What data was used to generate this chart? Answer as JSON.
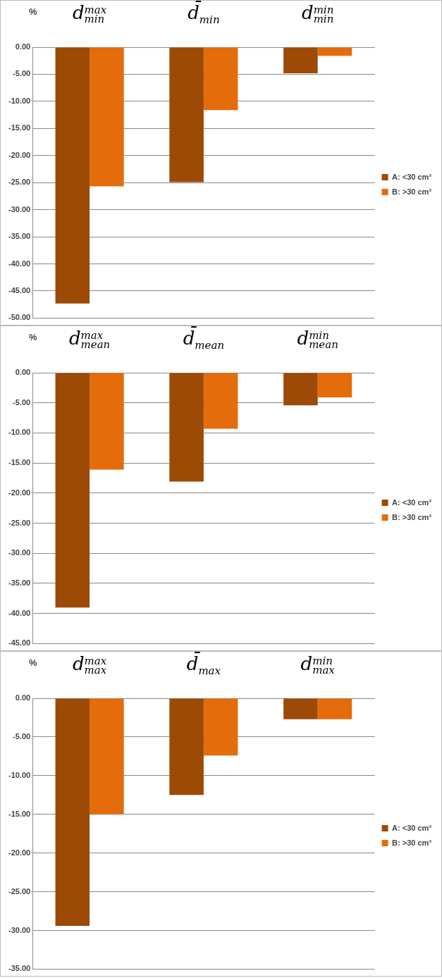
{
  "chart_data": [
    {
      "type": "bar",
      "ylabel": "%",
      "categories": [
        "d$^{max}$$_{min}$",
        "d̄$_{min}$",
        "d$^{min}$$_{min}$"
      ],
      "series": [
        {
          "name": "A: <30 cm³",
          "color": "#9c4a06",
          "values": [
            -47.3,
            -24.9,
            -4.8
          ]
        },
        {
          "name": "B: >30 cm³",
          "color": "#e46c0a",
          "values": [
            -25.7,
            -11.6,
            -1.6
          ]
        }
      ],
      "ylim": [
        -50,
        0
      ],
      "yticks": [
        {
          "value": 0,
          "label": "0.00"
        },
        {
          "value": -5,
          "label": "-5.00"
        },
        {
          "value": -10,
          "label": "-10.00"
        },
        {
          "value": -15,
          "label": "-15.00"
        },
        {
          "value": -20,
          "label": "-20.00"
        },
        {
          "value": -25,
          "label": "-25.00"
        },
        {
          "value": -30,
          "label": "-30.00"
        },
        {
          "value": -35,
          "label": "-35.00"
        },
        {
          "value": -40,
          "label": "-40.00"
        },
        {
          "value": -45,
          "label": "-45.00"
        },
        {
          "value": -50,
          "label": "-50.00"
        }
      ],
      "grid": "y",
      "legend": "right"
    },
    {
      "type": "bar",
      "ylabel": "%",
      "categories": [
        "d$^{max}$$_{mean}$",
        "d̄$_{mean}$",
        "d$^{min}$$_{mean}$"
      ],
      "series": [
        {
          "name": "A: <30 cm³",
          "color": "#9c4a06",
          "values": [
            -39.0,
            -18.1,
            -5.4
          ]
        },
        {
          "name": "B: >30 cm³",
          "color": "#e46c0a",
          "values": [
            -16.1,
            -9.3,
            -4.1
          ]
        }
      ],
      "ylim": [
        -45,
        0
      ],
      "yticks": [
        {
          "value": 0,
          "label": "0.00"
        },
        {
          "value": -5,
          "label": "-5.00"
        },
        {
          "value": -10,
          "label": "-10.00"
        },
        {
          "value": -15,
          "label": "-15.00"
        },
        {
          "value": -20,
          "label": "-20.00"
        },
        {
          "value": -25,
          "label": "-25.00"
        },
        {
          "value": -30,
          "label": "-30.00"
        },
        {
          "value": -35,
          "label": "-35.00"
        },
        {
          "value": -40,
          "label": "-40.00"
        },
        {
          "value": -45,
          "label": "-45.00"
        }
      ],
      "grid": "y",
      "legend": "right"
    },
    {
      "type": "bar",
      "ylabel": "%",
      "categories": [
        "d$^{max}$$_{max}$",
        "d̄$_{max}$",
        "d$^{min}$$_{max}$"
      ],
      "series": [
        {
          "name": "A: <30 cm³",
          "color": "#9c4a06",
          "values": [
            -29.4,
            -12.5,
            -2.7
          ]
        },
        {
          "name": "B: >30 cm³",
          "color": "#e46c0a",
          "values": [
            -15.0,
            -7.4,
            -2.7
          ]
        }
      ],
      "ylim": [
        -35,
        0
      ],
      "yticks": [
        {
          "value": 0,
          "label": "0.00"
        },
        {
          "value": -5,
          "label": "-5.00"
        },
        {
          "value": -10,
          "label": "-10.00"
        },
        {
          "value": -15,
          "label": "-15.00"
        },
        {
          "value": -20,
          "label": "-20.00"
        },
        {
          "value": -25,
          "label": "-25.00"
        },
        {
          "value": -30,
          "label": "-30.00"
        },
        {
          "value": -35,
          "label": "-35.00"
        }
      ],
      "grid": "y",
      "legend": "right"
    }
  ]
}
